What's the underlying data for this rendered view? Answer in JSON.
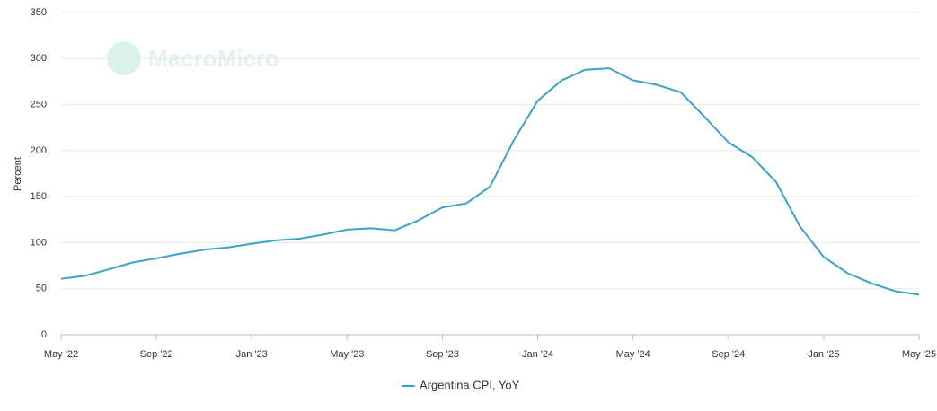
{
  "chart_data": {
    "type": "line",
    "watermark": "MacroMicro",
    "ylabel": "Percent",
    "categories": [
      "May '22",
      null,
      null,
      null,
      "Sep '22",
      null,
      null,
      null,
      "Jan '23",
      null,
      null,
      null,
      "May '23",
      null,
      null,
      null,
      "Sep '23",
      null,
      null,
      null,
      "Jan '24",
      null,
      null,
      null,
      "May '24",
      null,
      null,
      null,
      "Sep '24",
      null,
      null,
      null,
      "Jan '25",
      null,
      null,
      null,
      "May '25"
    ],
    "series": [
      {
        "name": "Argentina CPI, YoY",
        "color": "#3ba3c8",
        "values": [
          60.7,
          64.0,
          71.0,
          78.5,
          83.0,
          88.0,
          92.4,
          94.8,
          98.8,
          102.5,
          104.3,
          108.8,
          114.2,
          115.6,
          113.4,
          124.4,
          138.3,
          142.7,
          160.9,
          211.4,
          254.2,
          276.2,
          287.9,
          289.4,
          276.4,
          271.5,
          263.4,
          236.7,
          209.0,
          193.0,
          166.0,
          117.8,
          84.5,
          66.9,
          55.9,
          47.3,
          43.5
        ]
      }
    ],
    "ylim": [
      0,
      350
    ],
    "yticks": [
      0,
      50,
      100,
      150,
      200,
      250,
      300,
      350
    ],
    "grid": true,
    "legend": "bottom"
  }
}
